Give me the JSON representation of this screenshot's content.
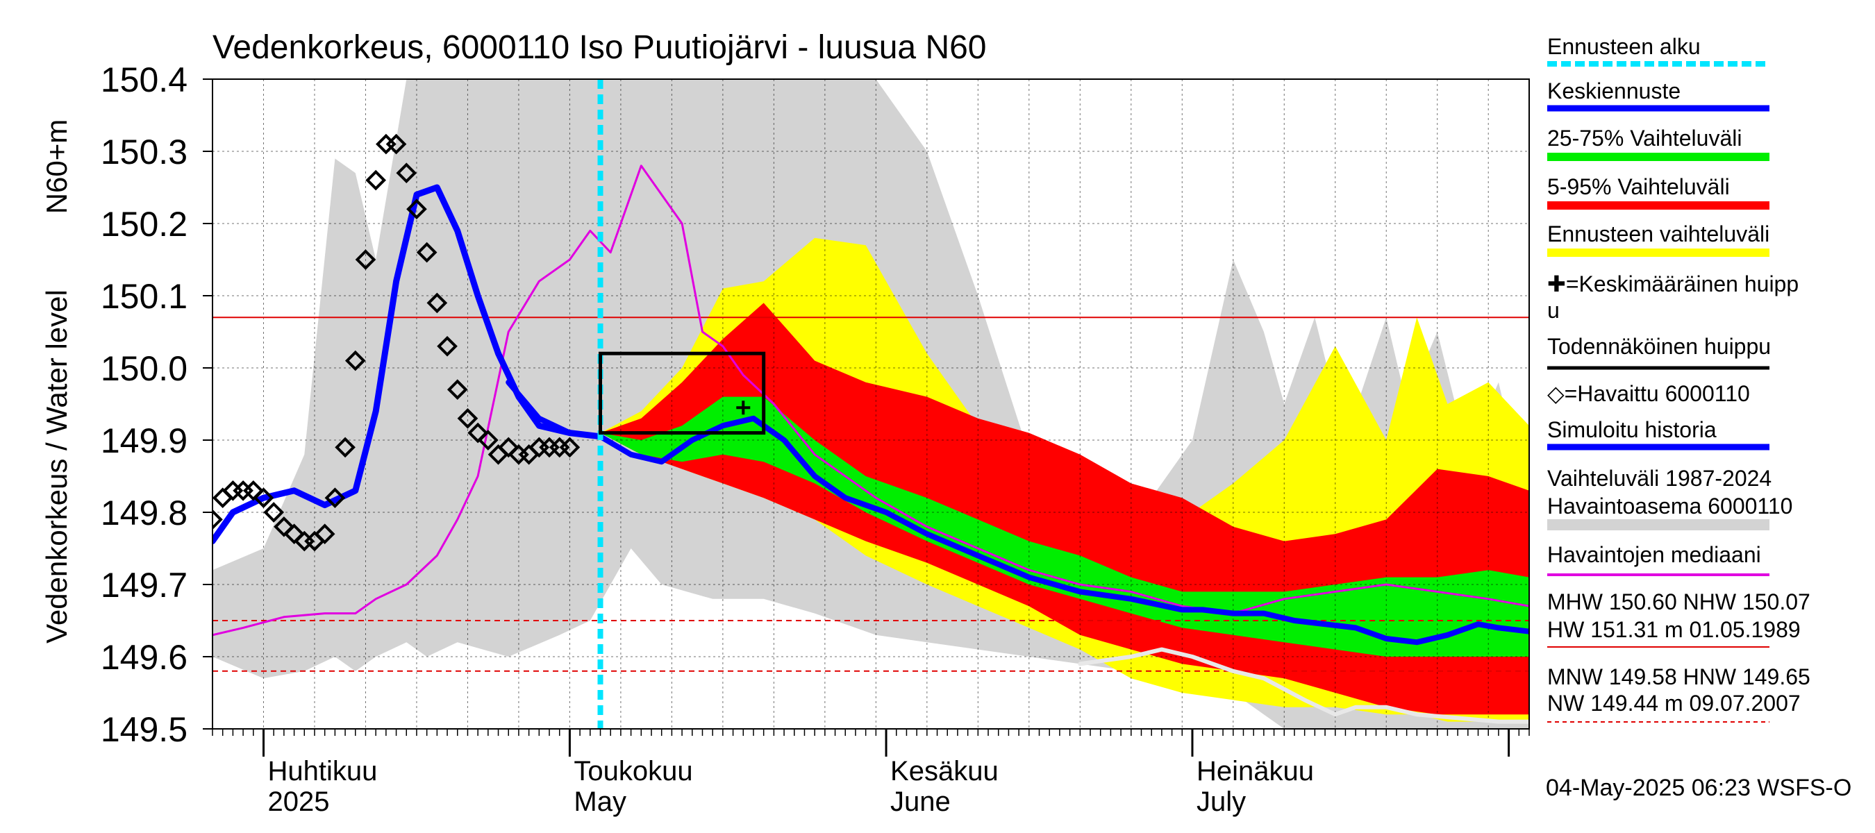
{
  "chart_data": {
    "type": "area",
    "title": "Vedenkorkeus, 6000110 Iso Puutiojärvi - luusua N60",
    "ylabel_main": "Vedenkorkeus / Water level",
    "ylabel_unit": "N60+m",
    "ylim": [
      149.5,
      150.4
    ],
    "yticks": [
      "149.5",
      "149.6",
      "149.7",
      "149.8",
      "149.9",
      "150.0",
      "150.1",
      "150.2",
      "150.3",
      "150.4"
    ],
    "x_start": "2025-03-27",
    "x_end": "2025-08-03",
    "forecast_start": "2025-05-04",
    "month_labels": [
      {
        "date": "2025-04-01",
        "fi": "Huhtikuu",
        "en": "2025"
      },
      {
        "date": "2025-05-01",
        "fi": "Toukokuu",
        "en": "May"
      },
      {
        "date": "2025-06-01",
        "fi": "Kesäkuu",
        "en": "June"
      },
      {
        "date": "2025-07-01",
        "fi": "Heinäkuu",
        "en": "July"
      }
    ],
    "reference_lines": [
      {
        "label": "NHW",
        "value": 150.07,
        "color": "#e00000",
        "style": "solid"
      },
      {
        "label": "HNW",
        "value": 149.65,
        "color": "#e00000",
        "style": "dashed"
      },
      {
        "label": "MNW",
        "value": 149.58,
        "color": "#e00000",
        "style": "dashed"
      }
    ],
    "colors": {
      "gray_range": "#d3d3d3",
      "yellow": "#ffff00",
      "red": "#ff0000",
      "green": "#00ee00",
      "forecast": "#0000ff",
      "median": "#e000e0",
      "forecast_start": "#00e5ff",
      "simulated": "#0000ff",
      "observed_marker": "#000000",
      "white_line": "#e8e8e8"
    },
    "probable_peak_box": {
      "x0": "2025-05-04",
      "x1": "2025-05-20",
      "y0": 149.91,
      "y1": 150.02
    },
    "mean_peak": {
      "x": "2025-05-18",
      "y": 149.945
    },
    "series": {
      "gray_range": {
        "x": [
          "2025-03-27",
          "2025-04-01",
          "2025-04-05",
          "2025-04-08",
          "2025-04-10",
          "2025-04-12",
          "2025-04-15",
          "2025-04-17",
          "2025-04-20",
          "2025-04-25",
          "2025-04-30",
          "2025-05-03",
          "2025-05-05",
          "2025-05-07",
          "2025-05-10",
          "2025-05-15",
          "2025-05-20",
          "2025-05-25",
          "2025-05-31",
          "2025-06-05",
          "2025-06-10",
          "2025-06-15",
          "2025-06-20",
          "2025-06-25",
          "2025-07-01",
          "2025-07-05",
          "2025-07-08",
          "2025-07-10",
          "2025-07-13",
          "2025-07-16",
          "2025-07-20",
          "2025-07-22",
          "2025-07-25",
          "2025-07-28",
          "2025-07-31",
          "2025-08-03"
        ],
        "upper": [
          149.72,
          149.75,
          149.88,
          150.29,
          150.27,
          150.15,
          150.4,
          150.4,
          150.4,
          150.4,
          150.4,
          150.4,
          150.4,
          150.4,
          150.4,
          150.4,
          150.4,
          150.4,
          150.4,
          150.3,
          150.1,
          149.88,
          149.82,
          149.78,
          149.9,
          150.15,
          150.05,
          149.95,
          150.07,
          149.9,
          150.07,
          149.95,
          150.05,
          149.88,
          149.98,
          149.8
        ],
        "lower": [
          149.6,
          149.57,
          149.58,
          149.6,
          149.58,
          149.6,
          149.62,
          149.6,
          149.62,
          149.6,
          149.63,
          149.65,
          149.7,
          149.75,
          149.7,
          149.68,
          149.68,
          149.66,
          149.63,
          149.62,
          149.61,
          149.6,
          149.59,
          149.58,
          149.57,
          149.55,
          149.52,
          149.5,
          149.5,
          149.5,
          149.5,
          149.5,
          149.5,
          149.5,
          149.5,
          149.5
        ]
      },
      "yellow": {
        "x": [
          "2025-05-04",
          "2025-05-08",
          "2025-05-12",
          "2025-05-16",
          "2025-05-20",
          "2025-05-25",
          "2025-05-30",
          "2025-06-05",
          "2025-06-10",
          "2025-06-15",
          "2025-06-20",
          "2025-06-25",
          "2025-06-30",
          "2025-07-05",
          "2025-07-10",
          "2025-07-15",
          "2025-07-20",
          "2025-07-23",
          "2025-07-26",
          "2025-07-30",
          "2025-08-03"
        ],
        "upper": [
          149.91,
          149.94,
          150.0,
          150.11,
          150.12,
          150.18,
          150.17,
          150.02,
          149.92,
          149.9,
          149.87,
          149.8,
          149.79,
          149.84,
          149.9,
          150.03,
          149.9,
          150.07,
          149.95,
          149.98,
          149.92
        ],
        "lower": [
          149.91,
          149.89,
          149.86,
          149.84,
          149.82,
          149.79,
          149.74,
          149.7,
          149.67,
          149.64,
          149.61,
          149.57,
          149.55,
          149.54,
          149.53,
          149.53,
          149.52,
          149.52,
          149.51,
          149.51,
          149.51
        ]
      },
      "red": {
        "x": [
          "2025-05-04",
          "2025-05-08",
          "2025-05-12",
          "2025-05-16",
          "2025-05-20",
          "2025-05-25",
          "2025-05-30",
          "2025-06-05",
          "2025-06-10",
          "2025-06-15",
          "2025-06-20",
          "2025-06-25",
          "2025-06-30",
          "2025-07-05",
          "2025-07-10",
          "2025-07-15",
          "2025-07-20",
          "2025-07-25",
          "2025-07-30",
          "2025-08-03"
        ],
        "upper": [
          149.91,
          149.93,
          149.98,
          150.04,
          150.09,
          150.01,
          149.98,
          149.96,
          149.93,
          149.91,
          149.88,
          149.84,
          149.82,
          149.78,
          149.76,
          149.77,
          149.79,
          149.86,
          149.85,
          149.83
        ],
        "lower": [
          149.91,
          149.88,
          149.86,
          149.84,
          149.82,
          149.79,
          149.76,
          149.73,
          149.7,
          149.67,
          149.63,
          149.61,
          149.59,
          149.58,
          149.57,
          149.55,
          149.53,
          149.52,
          149.52,
          149.52
        ]
      },
      "green": {
        "x": [
          "2025-05-04",
          "2025-05-08",
          "2025-05-12",
          "2025-05-16",
          "2025-05-20",
          "2025-05-25",
          "2025-05-30",
          "2025-06-05",
          "2025-06-10",
          "2025-06-15",
          "2025-06-20",
          "2025-06-25",
          "2025-06-30",
          "2025-07-05",
          "2025-07-10",
          "2025-07-15",
          "2025-07-20",
          "2025-07-25",
          "2025-07-30",
          "2025-08-03"
        ],
        "upper": [
          149.91,
          149.9,
          149.92,
          149.96,
          149.96,
          149.9,
          149.85,
          149.82,
          149.79,
          149.76,
          149.74,
          149.71,
          149.69,
          149.69,
          149.69,
          149.7,
          149.71,
          149.71,
          149.72,
          149.71
        ],
        "lower": [
          149.91,
          149.88,
          149.87,
          149.88,
          149.87,
          149.84,
          149.8,
          149.76,
          149.73,
          149.7,
          149.68,
          149.66,
          149.64,
          149.63,
          149.62,
          149.61,
          149.6,
          149.6,
          149.6,
          149.6
        ]
      },
      "forecast": {
        "x": [
          "2025-04-25",
          "2025-04-28",
          "2025-05-01",
          "2025-05-04",
          "2025-05-07",
          "2025-05-10",
          "2025-05-13",
          "2025-05-16",
          "2025-05-19",
          "2025-05-22",
          "2025-05-25",
          "2025-05-28",
          "2025-06-01",
          "2025-06-05",
          "2025-06-10",
          "2025-06-15",
          "2025-06-20",
          "2025-06-25",
          "2025-06-30",
          "2025-07-02",
          "2025-07-05",
          "2025-07-08",
          "2025-07-11",
          "2025-07-14",
          "2025-07-17",
          "2025-07-20",
          "2025-07-23",
          "2025-07-26",
          "2025-07-29",
          "2025-07-31",
          "2025-08-03"
        ],
        "y": [
          149.98,
          149.93,
          149.91,
          149.905,
          149.88,
          149.87,
          149.9,
          149.92,
          149.93,
          149.9,
          149.85,
          149.82,
          149.8,
          149.77,
          149.74,
          149.71,
          149.69,
          149.68,
          149.665,
          149.665,
          149.66,
          149.66,
          149.65,
          149.645,
          149.64,
          149.625,
          149.62,
          149.63,
          149.645,
          149.64,
          149.635
        ]
      },
      "simulated": {
        "x": [
          "2025-03-27",
          "2025-03-29",
          "2025-04-01",
          "2025-04-04",
          "2025-04-07",
          "2025-04-10",
          "2025-04-12",
          "2025-04-14",
          "2025-04-16",
          "2025-04-18",
          "2025-04-20",
          "2025-04-22",
          "2025-04-24",
          "2025-04-26",
          "2025-04-28",
          "2025-05-01",
          "2025-05-04"
        ],
        "y": [
          149.76,
          149.8,
          149.82,
          149.83,
          149.81,
          149.83,
          149.94,
          150.12,
          150.24,
          150.25,
          150.19,
          150.1,
          150.02,
          149.96,
          149.92,
          149.91,
          149.905
        ]
      },
      "median": {
        "x": [
          "2025-03-27",
          "2025-03-30",
          "2025-04-03",
          "2025-04-07",
          "2025-04-10",
          "2025-04-12",
          "2025-04-15",
          "2025-04-18",
          "2025-04-20",
          "2025-04-22",
          "2025-04-25",
          "2025-04-28",
          "2025-05-01",
          "2025-05-03",
          "2025-05-05",
          "2025-05-08",
          "2025-05-10",
          "2025-05-12",
          "2025-05-14",
          "2025-05-16",
          "2025-05-18",
          "2025-05-21",
          "2025-05-25",
          "2025-05-31",
          "2025-06-05",
          "2025-06-10",
          "2025-06-15",
          "2025-06-20",
          "2025-06-25",
          "2025-06-30",
          "2025-07-05",
          "2025-07-10",
          "2025-07-15",
          "2025-07-20",
          "2025-07-25",
          "2025-07-30",
          "2025-08-03"
        ],
        "y": [
          149.63,
          149.64,
          149.655,
          149.66,
          149.66,
          149.68,
          149.7,
          149.74,
          149.79,
          149.85,
          150.05,
          150.12,
          150.15,
          150.19,
          150.16,
          150.28,
          150.24,
          150.2,
          150.05,
          150.03,
          149.99,
          149.95,
          149.88,
          149.82,
          149.78,
          149.75,
          149.72,
          149.7,
          149.69,
          149.67,
          149.66,
          149.68,
          149.69,
          149.7,
          149.69,
          149.68,
          149.67
        ]
      },
      "white_line": {
        "x": [
          "2025-06-20",
          "2025-06-25",
          "2025-06-28",
          "2025-07-01",
          "2025-07-05",
          "2025-07-08",
          "2025-07-12",
          "2025-07-15",
          "2025-07-17",
          "2025-07-20",
          "2025-07-23",
          "2025-07-27",
          "2025-07-31",
          "2025-08-03"
        ],
        "y": [
          149.59,
          149.6,
          149.61,
          149.6,
          149.58,
          149.57,
          149.54,
          149.52,
          149.53,
          149.53,
          149.52,
          149.515,
          149.51,
          149.51
        ]
      },
      "observed": {
        "x": [
          "2025-03-27",
          "2025-03-28",
          "2025-03-29",
          "2025-03-30",
          "2025-03-31",
          "2025-04-01",
          "2025-04-02",
          "2025-04-03",
          "2025-04-04",
          "2025-04-05",
          "2025-04-06",
          "2025-04-07",
          "2025-04-08",
          "2025-04-09",
          "2025-04-10",
          "2025-04-11",
          "2025-04-12",
          "2025-04-13",
          "2025-04-14",
          "2025-04-15",
          "2025-04-16",
          "2025-04-17",
          "2025-04-18",
          "2025-04-19",
          "2025-04-20",
          "2025-04-21",
          "2025-04-22",
          "2025-04-23",
          "2025-04-24",
          "2025-04-25",
          "2025-04-26",
          "2025-04-27",
          "2025-04-28",
          "2025-04-29",
          "2025-04-30",
          "2025-05-01"
        ],
        "y": [
          149.79,
          149.82,
          149.83,
          149.83,
          149.83,
          149.82,
          149.8,
          149.78,
          149.77,
          149.76,
          149.76,
          149.77,
          149.82,
          149.89,
          150.01,
          150.15,
          150.26,
          150.31,
          150.31,
          150.27,
          150.22,
          150.16,
          150.09,
          150.03,
          149.97,
          149.93,
          149.91,
          149.9,
          149.88,
          149.89,
          149.88,
          149.88,
          149.89,
          149.89,
          149.89,
          149.89
        ]
      }
    },
    "legend": [
      {
        "label": "Ennusteen alku",
        "kind": "dashed",
        "color": "#00e5ff"
      },
      {
        "label": "Keskiennuste",
        "kind": "line",
        "color": "#0000ff"
      },
      {
        "label": "25-75% Vaihteluväli",
        "kind": "line",
        "color": "#00ee00"
      },
      {
        "label": "5-95% Vaihteluväli",
        "kind": "line",
        "color": "#ff0000"
      },
      {
        "label": "Ennusteen vaihteluväli",
        "kind": "line",
        "color": "#ffff00"
      },
      {
        "label": "✚=Keskimääräinen huipp",
        "label2": "u",
        "kind": "none",
        "color": "#000000"
      },
      {
        "label": "Todennäköinen huippu",
        "kind": "line",
        "color": "#000000"
      },
      {
        "label": "◇=Havaittu 6000110",
        "kind": "none",
        "color": "#000000"
      },
      {
        "label": "Simuloitu historia",
        "kind": "line",
        "color": "#0000ff"
      },
      {
        "label": "Vaihteluväli 1987-2024",
        "label2": " Havaintoasema 6000110",
        "kind": "line",
        "color": "#d3d3d3"
      },
      {
        "label": "Havaintojen mediaani",
        "kind": "line",
        "color": "#e000e0"
      }
    ],
    "stats": [
      {
        "line1": "MHW 150.60 NHW 150.07",
        "line2": "HW 151.31 m 01.05.1989",
        "color": "#e00000",
        "style": "solid"
      },
      {
        "line1": "MNW 149.58 HNW 149.65",
        "line2": "NW 149.44 m 09.07.2007",
        "color": "#e00000",
        "style": "dashed"
      }
    ],
    "footer": "04-May-2025 06:23 WSFS-O"
  }
}
